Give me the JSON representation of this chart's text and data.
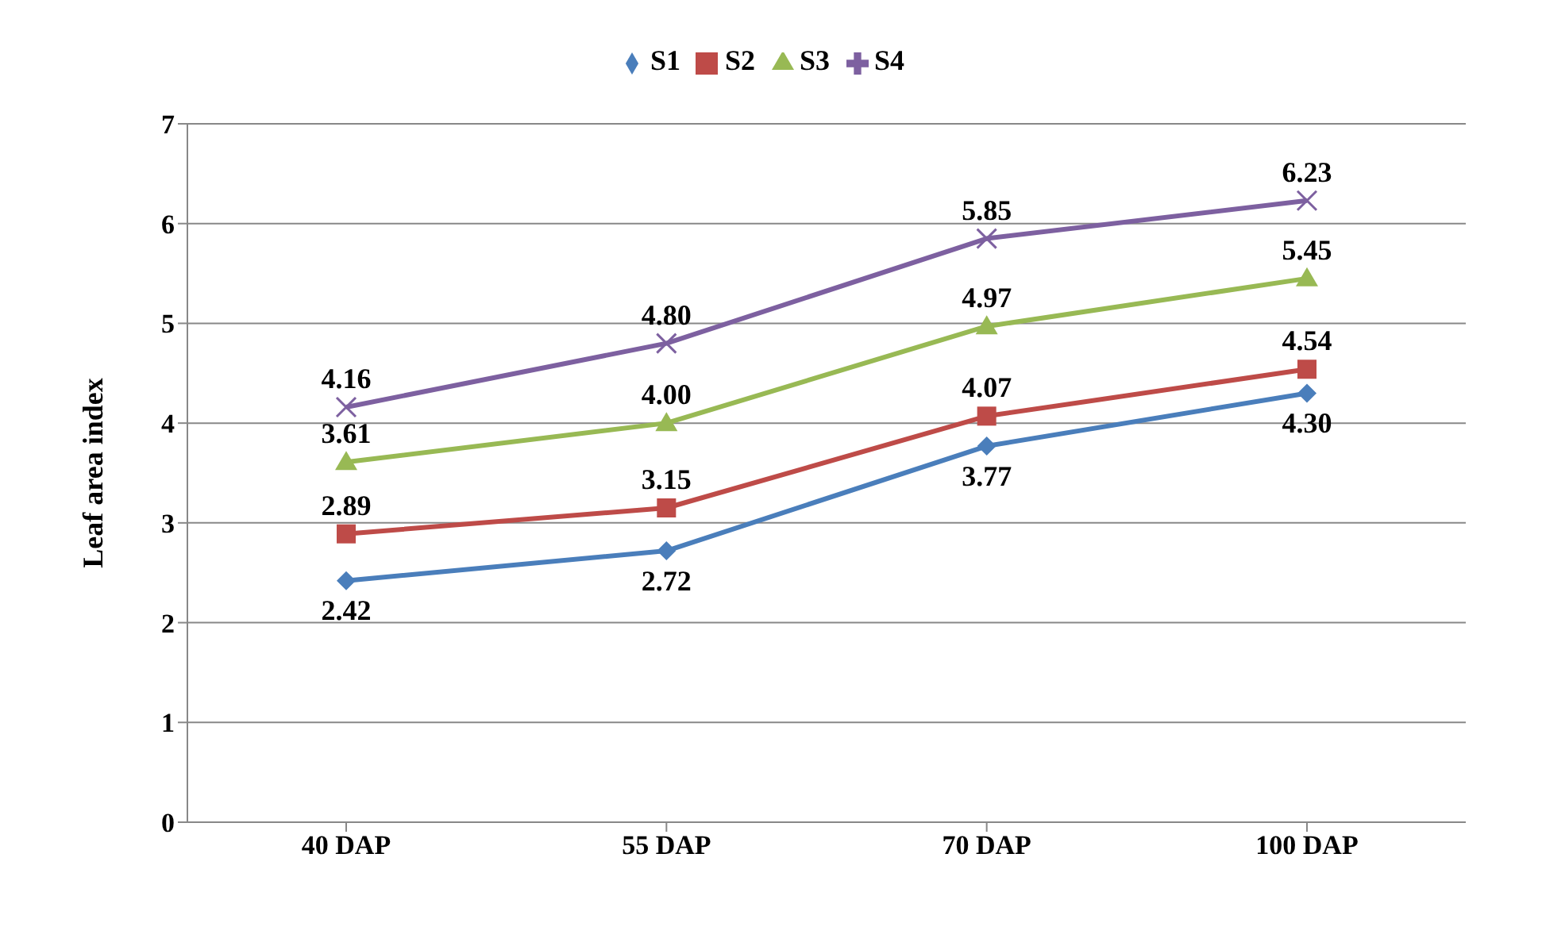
{
  "chart_data": {
    "type": "line",
    "ylabel": "Leaf area index",
    "categories": [
      "40 DAP",
      "55 DAP",
      "70 DAP",
      "100 DAP"
    ],
    "series": [
      {
        "name": "S1",
        "color": "#4a7ebb",
        "marker": "diamond",
        "values": [
          2.42,
          2.72,
          3.77,
          4.3
        ],
        "value_labels": [
          "2.42",
          "2.72",
          "3.77",
          "4.30"
        ]
      },
      {
        "name": "S2",
        "color": "#be4b48",
        "marker": "square",
        "values": [
          2.89,
          3.15,
          4.07,
          4.54
        ],
        "value_labels": [
          "2.89",
          "3.15",
          "4.07",
          "4.54"
        ]
      },
      {
        "name": "S3",
        "color": "#98b954",
        "marker": "triangle",
        "values": [
          3.61,
          4.0,
          4.97,
          5.45
        ],
        "value_labels": [
          "3.61",
          "4.00",
          "4.97",
          "5.45"
        ]
      },
      {
        "name": "S4",
        "color": "#7d60a0",
        "marker": "cross",
        "values": [
          4.16,
          4.8,
          5.85,
          6.23
        ],
        "value_labels": [
          "4.16",
          "4.80",
          "5.85",
          "6.23"
        ]
      }
    ],
    "ylim": [
      0,
      7
    ],
    "yticks": [
      0,
      1,
      2,
      3,
      4,
      5,
      6,
      7
    ],
    "grid": "y",
    "legend": "top"
  }
}
